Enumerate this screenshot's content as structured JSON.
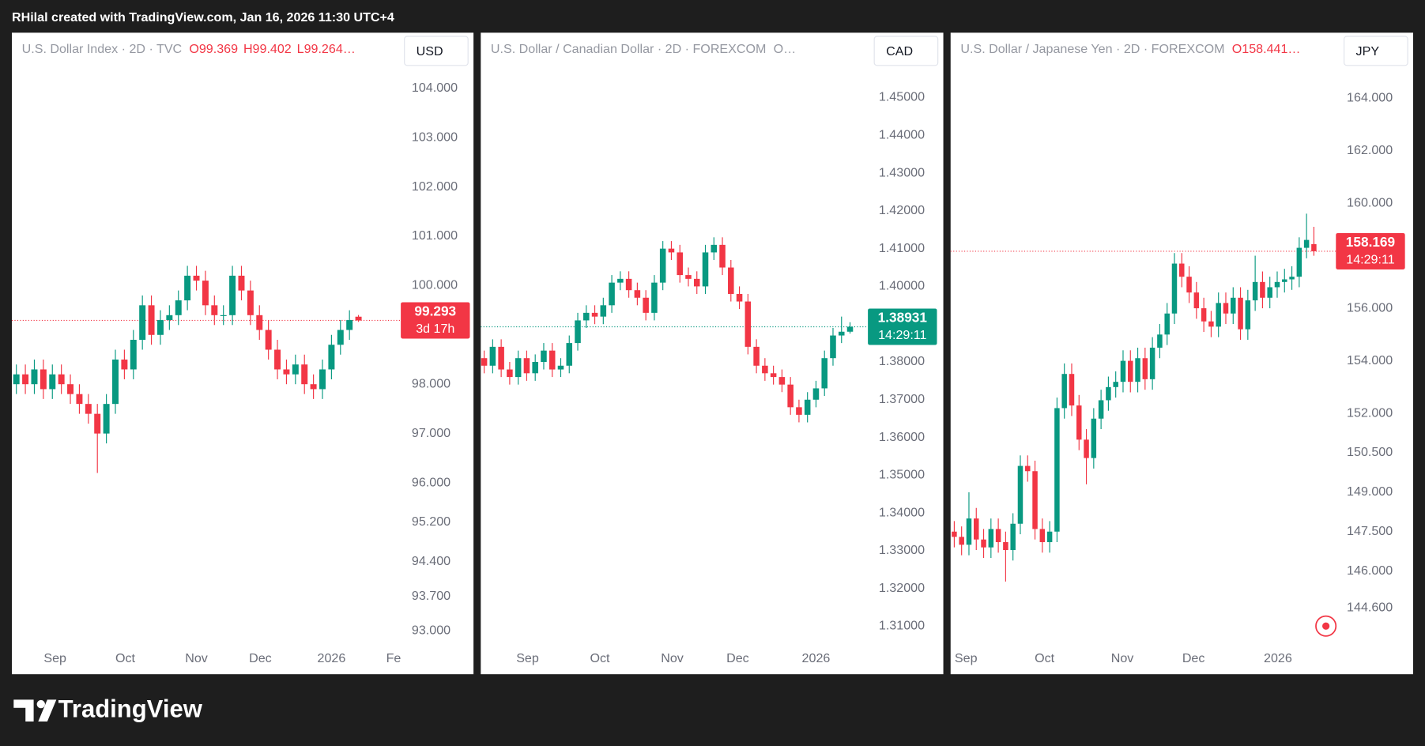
{
  "header": {
    "text": "RHilal created with TradingView.com, Jan 16, 2026 11:30 UTC+4"
  },
  "footer": {
    "brand": "TradingView"
  },
  "chart_data": [
    {
      "type": "candlestick",
      "title": "U.S. Dollar Index · 2D · TVC",
      "header_ohlc": [
        "O99.369",
        "H99.402",
        "L99.264…"
      ],
      "header_color": "#f23645",
      "currency": "USD",
      "up_color": "#089981",
      "down_color": "#f23645",
      "grid": false,
      "open": [
        98.0,
        98.2,
        98.0,
        98.3,
        97.9,
        98.2,
        98.0,
        97.8,
        97.6,
        97.4,
        97.0,
        97.6,
        98.5,
        98.3,
        98.9,
        99.6,
        99.0,
        99.3,
        99.4,
        99.7,
        100.2,
        100.1,
        99.6,
        99.4,
        99.4,
        100.2,
        99.9,
        99.4,
        99.1,
        98.7,
        98.3,
        98.2,
        98.4,
        98.0,
        97.9,
        98.3,
        98.8,
        99.1,
        99.369
      ],
      "high": [
        98.4,
        98.4,
        98.5,
        98.5,
        98.4,
        98.4,
        98.2,
        98.0,
        97.8,
        97.6,
        97.8,
        98.7,
        98.7,
        99.1,
        99.8,
        99.8,
        99.5,
        99.6,
        99.9,
        100.4,
        100.4,
        100.3,
        99.8,
        99.6,
        100.4,
        100.4,
        100.1,
        99.6,
        99.3,
        98.9,
        98.5,
        98.6,
        98.6,
        98.2,
        98.5,
        99.0,
        99.3,
        99.5,
        99.402
      ],
      "low": [
        97.8,
        97.8,
        97.8,
        97.7,
        97.7,
        97.8,
        97.6,
        97.4,
        97.2,
        96.2,
        96.8,
        97.4,
        98.1,
        98.1,
        98.7,
        98.8,
        98.8,
        99.1,
        99.2,
        99.5,
        99.9,
        99.4,
        99.2,
        99.2,
        99.2,
        99.7,
        99.2,
        98.9,
        98.5,
        98.1,
        98.0,
        98.0,
        97.8,
        97.7,
        97.7,
        98.1,
        98.6,
        98.9,
        99.264
      ],
      "close": [
        98.2,
        98.0,
        98.3,
        97.9,
        98.2,
        98.0,
        97.8,
        97.6,
        97.4,
        97.0,
        97.6,
        98.5,
        98.3,
        98.9,
        99.6,
        99.0,
        99.3,
        99.4,
        99.7,
        100.2,
        100.1,
        99.6,
        99.4,
        99.4,
        100.2,
        99.9,
        99.4,
        99.1,
        98.7,
        98.3,
        98.2,
        98.4,
        98.0,
        97.9,
        98.3,
        98.8,
        99.1,
        99.3,
        99.293
      ],
      "xlim": [
        -0.5,
        42.7
      ],
      "xticks": [
        {
          "value": 4.3,
          "label": "Sep"
        },
        {
          "value": 12.1,
          "label": "Oct"
        },
        {
          "value": 20.0,
          "label": "Nov"
        },
        {
          "value": 27.1,
          "label": "Dec"
        },
        {
          "value": 35.0,
          "label": "2026"
        },
        {
          "value": 41.9,
          "label": "Fe"
        }
      ],
      "ylim": [
        92.71,
        104.5
      ],
      "yticks": [
        {
          "value": 104,
          "label": "104.000"
        },
        {
          "value": 103,
          "label": "103.000"
        },
        {
          "value": 102,
          "label": "102.000"
        },
        {
          "value": 101,
          "label": "101.000"
        },
        {
          "value": 100,
          "label": "100.000"
        },
        {
          "value": 98,
          "label": "98.000"
        },
        {
          "value": 97,
          "label": "97.000"
        },
        {
          "value": 96,
          "label": "96.000"
        },
        {
          "value": 95.2,
          "label": "95.200"
        },
        {
          "value": 94.4,
          "label": "94.400"
        },
        {
          "value": 93.7,
          "label": "93.700"
        },
        {
          "value": 93,
          "label": "93.000"
        }
      ],
      "last_price": 99.293,
      "countdown": "3d 17h",
      "last_color": "#f23645"
    },
    {
      "type": "candlestick",
      "title": "U.S. Dollar / Canadian Dollar · 2D · FOREXCOM",
      "header_ohlc": [
        "O…"
      ],
      "header_color": "#9598a1",
      "currency": "CAD",
      "up_color": "#089981",
      "down_color": "#f23645",
      "grid": false,
      "open": [
        1.381,
        1.379,
        1.384,
        1.378,
        1.376,
        1.381,
        1.377,
        1.38,
        1.383,
        1.378,
        1.379,
        1.385,
        1.391,
        1.393,
        1.392,
        1.395,
        1.401,
        1.402,
        1.399,
        1.397,
        1.393,
        1.401,
        1.41,
        1.409,
        1.403,
        1.402,
        1.4,
        1.409,
        1.411,
        1.405,
        1.398,
        1.396,
        1.384,
        1.379,
        1.377,
        1.376,
        1.374,
        1.368,
        1.366,
        1.37,
        1.373,
        1.381,
        1.387,
        1.388
      ],
      "high": [
        1.383,
        1.386,
        1.386,
        1.38,
        1.383,
        1.383,
        1.382,
        1.385,
        1.385,
        1.381,
        1.387,
        1.393,
        1.395,
        1.395,
        1.397,
        1.403,
        1.404,
        1.404,
        1.401,
        1.399,
        1.403,
        1.412,
        1.412,
        1.411,
        1.405,
        1.404,
        1.411,
        1.413,
        1.413,
        1.407,
        1.4,
        1.398,
        1.386,
        1.381,
        1.379,
        1.378,
        1.376,
        1.37,
        1.372,
        1.375,
        1.383,
        1.389,
        1.392,
        1.3905
      ],
      "low": [
        1.377,
        1.377,
        1.376,
        1.374,
        1.374,
        1.375,
        1.375,
        1.378,
        1.376,
        1.376,
        1.377,
        1.383,
        1.389,
        1.39,
        1.39,
        1.393,
        1.399,
        1.397,
        1.395,
        1.391,
        1.391,
        1.399,
        1.407,
        1.401,
        1.4,
        1.398,
        1.398,
        1.407,
        1.403,
        1.396,
        1.394,
        1.382,
        1.377,
        1.375,
        1.374,
        1.372,
        1.366,
        1.364,
        1.364,
        1.368,
        1.371,
        1.379,
        1.385,
        1.3875
      ],
      "close": [
        1.379,
        1.384,
        1.378,
        1.376,
        1.381,
        1.377,
        1.38,
        1.383,
        1.378,
        1.379,
        1.385,
        1.391,
        1.393,
        1.392,
        1.395,
        1.401,
        1.402,
        1.399,
        1.397,
        1.393,
        1.401,
        1.41,
        1.409,
        1.403,
        1.402,
        1.4,
        1.409,
        1.411,
        1.405,
        1.398,
        1.396,
        1.384,
        1.379,
        1.377,
        1.376,
        1.374,
        1.368,
        1.366,
        1.37,
        1.373,
        1.381,
        1.387,
        1.388,
        1.38931
      ],
      "xlim": [
        -0.4,
        45.1
      ],
      "xticks": [
        {
          "value": 5.1,
          "label": "Sep"
        },
        {
          "value": 13.6,
          "label": "Oct"
        },
        {
          "value": 22.1,
          "label": "Nov"
        },
        {
          "value": 29.8,
          "label": "Dec"
        },
        {
          "value": 39.0,
          "label": "2026"
        }
      ],
      "ylim": [
        1.305,
        1.459
      ],
      "yticks": [
        {
          "value": 1.45,
          "label": "1.45000"
        },
        {
          "value": 1.44,
          "label": "1.44000"
        },
        {
          "value": 1.43,
          "label": "1.43000"
        },
        {
          "value": 1.42,
          "label": "1.42000"
        },
        {
          "value": 1.41,
          "label": "1.41000"
        },
        {
          "value": 1.4,
          "label": "1.40000"
        },
        {
          "value": 1.38,
          "label": "1.38000"
        },
        {
          "value": 1.37,
          "label": "1.37000"
        },
        {
          "value": 1.36,
          "label": "1.36000"
        },
        {
          "value": 1.35,
          "label": "1.35000"
        },
        {
          "value": 1.34,
          "label": "1.34000"
        },
        {
          "value": 1.33,
          "label": "1.33000"
        },
        {
          "value": 1.32,
          "label": "1.32000"
        },
        {
          "value": 1.31,
          "label": "1.31000"
        }
      ],
      "last_price": 1.38931,
      "countdown": "14:29:11",
      "last_color": "#089981"
    },
    {
      "type": "candlestick",
      "title": "U.S. Dollar / Japanese Yen · 2D · FOREXCOM",
      "header_ohlc": [
        "O158.441…"
      ],
      "header_color": "#f23645",
      "currency": "JPY",
      "up_color": "#089981",
      "down_color": "#f23645",
      "grid": false,
      "open": [
        147.5,
        147.3,
        147.0,
        148.0,
        147.2,
        146.9,
        147.6,
        147.1,
        146.8,
        147.8,
        150.0,
        149.8,
        147.6,
        147.1,
        147.5,
        152.2,
        153.5,
        152.3,
        151.0,
        150.3,
        151.8,
        152.5,
        153.0,
        153.2,
        154.0,
        153.2,
        154.1,
        153.3,
        154.5,
        155.0,
        155.8,
        157.7,
        157.2,
        156.6,
        156.0,
        155.5,
        155.3,
        156.2,
        155.8,
        156.4,
        155.2,
        156.3,
        157.0,
        156.4,
        156.8,
        157.0,
        157.1,
        157.2,
        158.3,
        158.441
      ],
      "high": [
        147.9,
        147.7,
        149.0,
        148.4,
        147.6,
        148.0,
        148.0,
        147.5,
        148.2,
        150.4,
        150.4,
        150.2,
        148.0,
        147.9,
        152.6,
        153.9,
        153.9,
        152.7,
        151.4,
        152.2,
        152.9,
        153.4,
        153.6,
        154.4,
        154.4,
        154.5,
        154.5,
        154.9,
        155.4,
        156.2,
        158.1,
        158.1,
        157.6,
        157.0,
        156.4,
        155.9,
        156.6,
        156.6,
        156.8,
        156.8,
        156.7,
        158.0,
        157.4,
        157.2,
        157.4,
        157.5,
        157.6,
        158.7,
        159.6,
        159.1
      ],
      "low": [
        146.9,
        146.6,
        146.6,
        146.8,
        146.5,
        146.5,
        146.7,
        145.6,
        146.4,
        147.4,
        149.4,
        147.2,
        146.7,
        146.7,
        147.1,
        151.8,
        151.9,
        150.6,
        149.3,
        149.9,
        151.4,
        152.1,
        152.6,
        152.8,
        152.8,
        152.8,
        152.9,
        152.9,
        154.1,
        154.6,
        155.4,
        156.8,
        156.2,
        155.6,
        155.1,
        154.9,
        154.9,
        155.4,
        155.4,
        154.8,
        154.8,
        155.9,
        156.0,
        156.0,
        156.4,
        156.6,
        156.7,
        156.8,
        157.9,
        158.0
      ],
      "close": [
        147.3,
        147.0,
        148.0,
        147.2,
        146.9,
        147.6,
        147.1,
        146.8,
        147.8,
        150.0,
        149.8,
        147.6,
        147.1,
        147.5,
        152.2,
        153.5,
        152.3,
        151.0,
        150.3,
        151.8,
        152.5,
        153.0,
        153.2,
        154.0,
        153.2,
        154.1,
        153.3,
        154.5,
        155.0,
        155.8,
        157.7,
        157.2,
        156.6,
        156.0,
        155.5,
        155.3,
        156.2,
        155.8,
        156.4,
        155.2,
        156.3,
        157.0,
        156.4,
        156.8,
        157.0,
        157.1,
        157.2,
        158.3,
        158.6,
        158.169
      ],
      "xlim": [
        -0.5,
        52.0
      ],
      "xticks": [
        {
          "value": 1.6,
          "label": "Sep"
        },
        {
          "value": 12.3,
          "label": "Oct"
        },
        {
          "value": 22.9,
          "label": "Nov"
        },
        {
          "value": 32.6,
          "label": "Dec"
        },
        {
          "value": 44.1,
          "label": "2026"
        }
      ],
      "ylim": [
        143.18,
        165.31
      ],
      "yticks": [
        {
          "value": 164,
          "label": "164.000"
        },
        {
          "value": 162,
          "label": "162.000"
        },
        {
          "value": 160,
          "label": "160.000"
        },
        {
          "value": 156,
          "label": "156.000"
        },
        {
          "value": 154,
          "label": "154.000"
        },
        {
          "value": 152,
          "label": "152.000"
        },
        {
          "value": 150.5,
          "label": "150.500"
        },
        {
          "value": 149,
          "label": "149.000"
        },
        {
          "value": 147.5,
          "label": "147.500"
        },
        {
          "value": 146,
          "label": "146.000"
        },
        {
          "value": 144.6,
          "label": "144.600"
        }
      ],
      "last_price": 158.169,
      "countdown": "14:29:11",
      "last_color": "#f23645"
    }
  ]
}
